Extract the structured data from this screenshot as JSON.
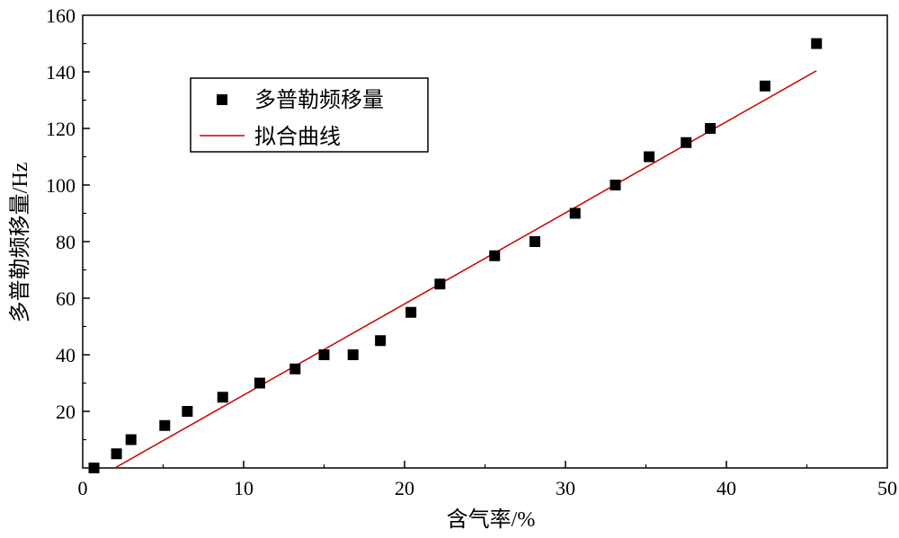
{
  "chart_data": {
    "type": "scatter",
    "xlabel": "含气率/%",
    "ylabel": "多普勒频移量/Hz",
    "xlim": [
      0,
      50
    ],
    "ylim": [
      0,
      160
    ],
    "x_ticks": [
      0,
      10,
      20,
      30,
      40,
      50
    ],
    "y_ticks": [
      20,
      40,
      60,
      80,
      100,
      120,
      140,
      160
    ],
    "grid": false,
    "legend_position": "top-left",
    "series": [
      {
        "name": "多普勒频移量",
        "kind": "scatter",
        "marker": "square",
        "color": "#000000",
        "x": [
          0.7,
          2.1,
          3.0,
          5.1,
          6.5,
          8.7,
          11.0,
          13.2,
          15.0,
          16.8,
          18.5,
          20.4,
          22.2,
          25.6,
          28.1,
          30.6,
          33.1,
          35.2,
          37.5,
          39.0,
          42.4,
          45.6
        ],
        "y": [
          0,
          5,
          10,
          15,
          20,
          25,
          30,
          35,
          40,
          40,
          45,
          55,
          65,
          75,
          80,
          90,
          100,
          110,
          115,
          120,
          135,
          150
        ]
      },
      {
        "name": "拟合曲线",
        "kind": "line",
        "color": "#cc0000",
        "x": [
          2.0,
          45.6
        ],
        "y": [
          0,
          140.4
        ]
      }
    ]
  }
}
